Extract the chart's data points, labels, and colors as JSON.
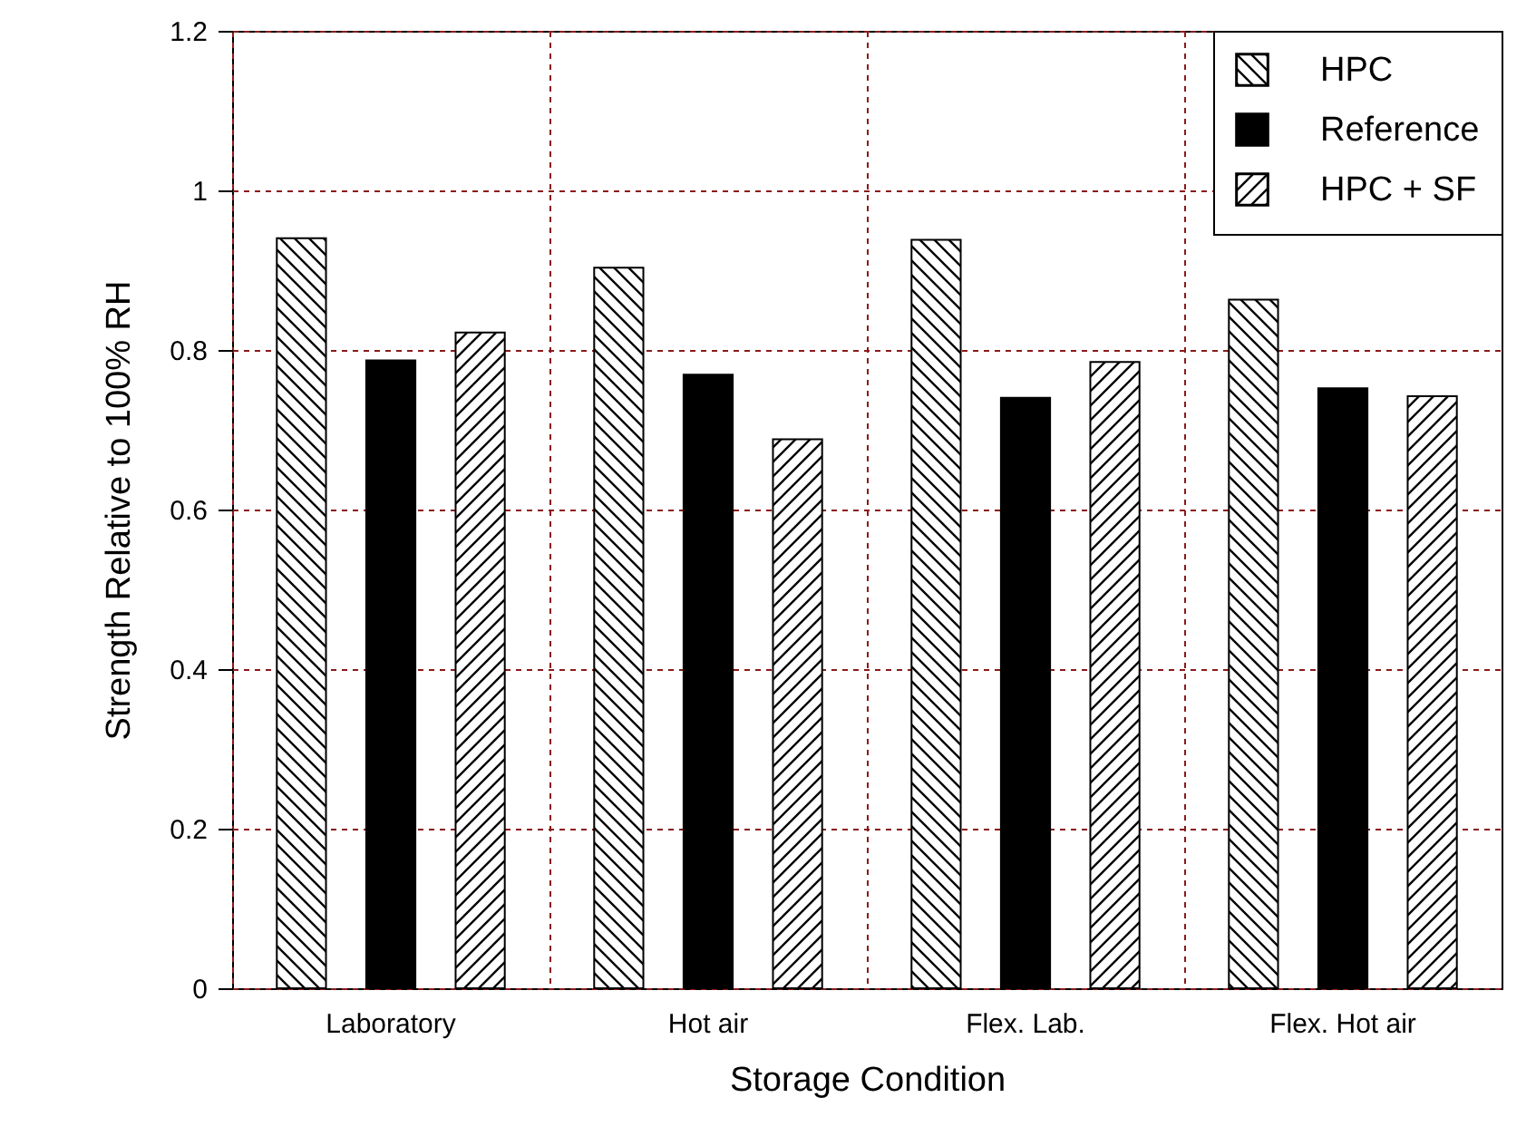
{
  "chart_data": {
    "type": "bar",
    "xlabel": "Storage Condition",
    "ylabel": "Strength Relative to 100% RH",
    "categories": [
      "Laboratory",
      "Hot air",
      "Flex. Lab.",
      "Flex. Hot air"
    ],
    "series": [
      {
        "name": "HPC",
        "color": "#000000",
        "values": [
          0.94,
          0.903,
          0.938,
          0.863
        ]
      },
      {
        "name": "Reference",
        "color": "#000000",
        "values": [
          0.787,
          0.769,
          0.74,
          0.752
        ]
      },
      {
        "name": "HPC + SF",
        "color": "#000000",
        "values": [
          0.822,
          0.688,
          0.785,
          0.742
        ]
      }
    ],
    "ylim": [
      0,
      1.2
    ],
    "yticks": [
      0,
      0.2,
      0.4,
      0.6,
      0.8,
      1,
      1.2
    ],
    "grid": true,
    "legend": "top right"
  }
}
